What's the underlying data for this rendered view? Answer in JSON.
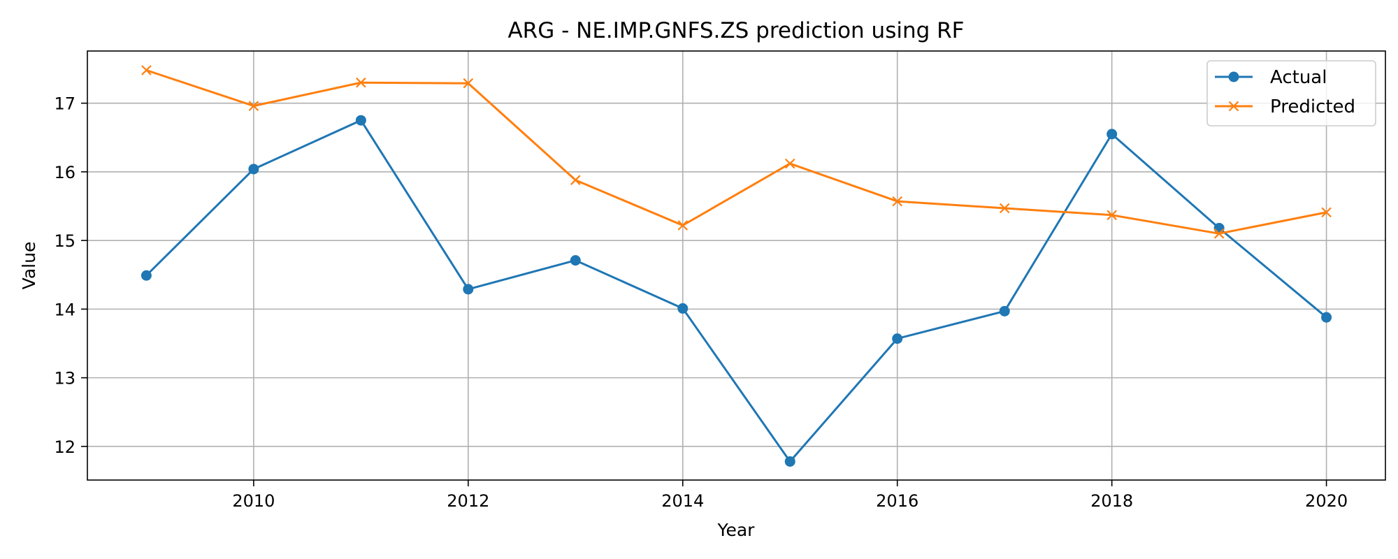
{
  "chart_data": {
    "type": "line",
    "title": "ARG - NE.IMP.GNFS.ZS prediction using RF",
    "xlabel": "Year",
    "ylabel": "Value",
    "x": [
      2009,
      2010,
      2011,
      2012,
      2013,
      2014,
      2015,
      2016,
      2017,
      2018,
      2019,
      2020
    ],
    "xlim": [
      2008.45,
      2020.55
    ],
    "ylim": [
      11.51,
      17.76
    ],
    "xticks": [
      2010,
      2012,
      2014,
      2016,
      2018,
      2020
    ],
    "yticks": [
      12,
      13,
      14,
      15,
      16,
      17
    ],
    "grid": true,
    "legend_position": "top-right",
    "series": [
      {
        "name": "Actual",
        "marker": "circle",
        "color": "#1f77b4",
        "values": [
          14.49,
          16.04,
          16.75,
          14.29,
          14.71,
          14.01,
          11.78,
          13.57,
          13.97,
          16.55,
          15.18,
          13.88
        ]
      },
      {
        "name": "Predicted",
        "marker": "x",
        "color": "#ff7f0e",
        "values": [
          17.48,
          16.96,
          17.3,
          17.29,
          15.88,
          15.22,
          16.12,
          15.57,
          15.47,
          15.37,
          15.1,
          15.41
        ]
      }
    ]
  }
}
